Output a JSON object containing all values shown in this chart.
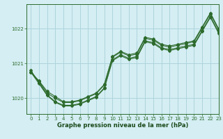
{
  "title": "Graphe pression niveau de la mer (hPa)",
  "bg_color": "#d4eef3",
  "grid_color": "#aed4dc",
  "line_color": "#2d6b2d",
  "xlim": [
    -0.5,
    23
  ],
  "ylim": [
    1019.55,
    1022.7
  ],
  "yticks": [
    1020,
    1021,
    1022
  ],
  "xticks": [
    0,
    1,
    2,
    3,
    4,
    5,
    6,
    7,
    8,
    9,
    10,
    11,
    12,
    13,
    14,
    15,
    16,
    17,
    18,
    19,
    20,
    21,
    22,
    23
  ],
  "series": [
    [
      1020.75,
      1020.5,
      1020.2,
      1020.05,
      1019.9,
      1019.9,
      1019.95,
      1020.05,
      1020.15,
      1020.4,
      1021.2,
      1021.35,
      1021.25,
      1021.3,
      1021.75,
      1021.7,
      1021.55,
      1021.5,
      1021.55,
      1021.6,
      1021.65,
      1022.05,
      1022.45,
      1022.0
    ],
    [
      1020.75,
      1020.48,
      1020.15,
      1020.0,
      1019.88,
      1019.88,
      1019.93,
      1020.03,
      1020.13,
      1020.38,
      1021.18,
      1021.32,
      1021.22,
      1021.27,
      1021.72,
      1021.67,
      1021.52,
      1021.47,
      1021.52,
      1021.57,
      1021.62,
      1022.02,
      1022.42,
      1021.97
    ],
    [
      1020.8,
      1020.45,
      1020.1,
      1019.9,
      1019.8,
      1019.8,
      1019.85,
      1019.95,
      1020.05,
      1020.3,
      1021.1,
      1021.25,
      1021.15,
      1021.2,
      1021.65,
      1021.6,
      1021.45,
      1021.4,
      1021.45,
      1021.5,
      1021.55,
      1021.95,
      1022.35,
      1021.9
    ],
    [
      1020.75,
      1020.42,
      1020.08,
      1019.88,
      1019.78,
      1019.78,
      1019.83,
      1019.93,
      1020.03,
      1020.28,
      1021.08,
      1021.22,
      1021.12,
      1021.17,
      1021.62,
      1021.57,
      1021.42,
      1021.37,
      1021.42,
      1021.47,
      1021.52,
      1021.92,
      1022.32,
      1021.87
    ]
  ]
}
